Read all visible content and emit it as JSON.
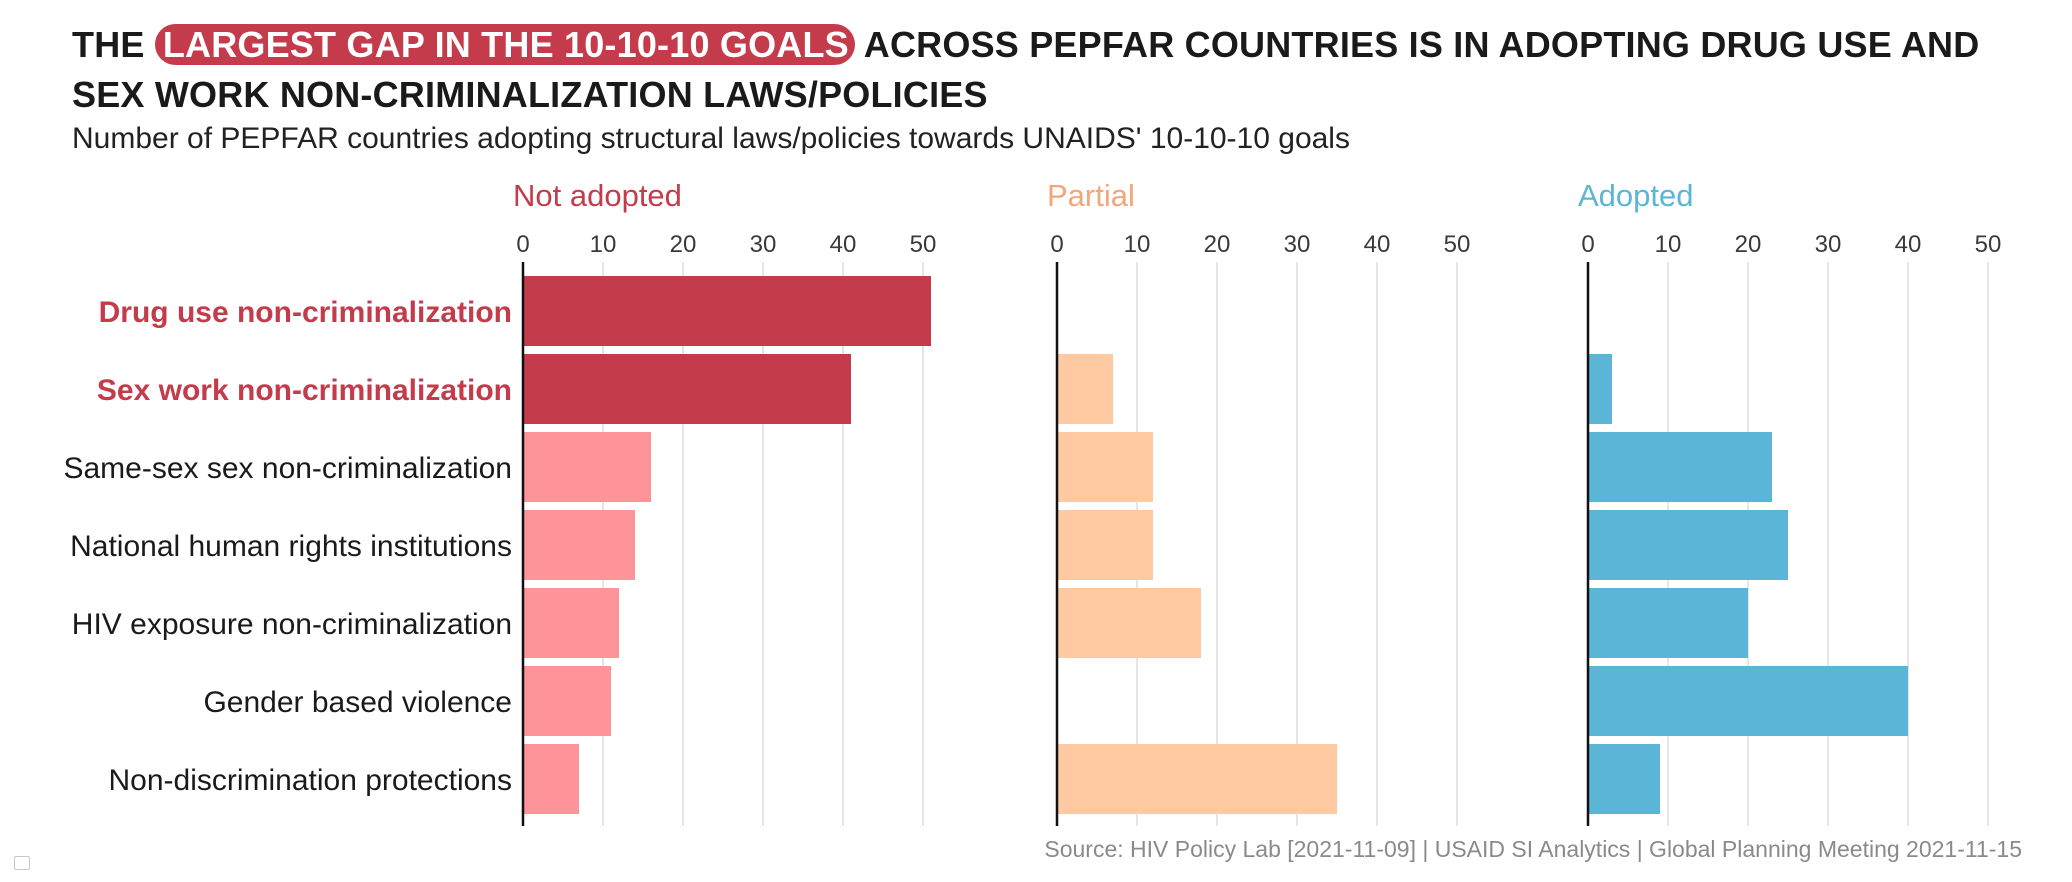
{
  "title": {
    "prefix": "THE ",
    "highlight": "LARGEST GAP IN THE 10-10-10 GOALS",
    "rest": " ACROSS PEPFAR COUNTRIES IS IN ADOPTING DRUG USE AND SEX WORK NON-CRIMINALIZATION LAWS/POLICIES"
  },
  "subtitle": "Number of PEPFAR countries adopting structural laws/policies towards UNAIDS' 10-10-10 goals",
  "source": "Source: HIV Policy Lab [2021-11-09] | USAID SI Analytics | Global Planning Meeting 2021-11-15",
  "chart_data": {
    "type": "bar",
    "orientation": "horizontal",
    "categories": [
      "Drug use non-criminalization",
      "Sex work non-criminalization",
      "Same-sex sex non-criminalization",
      "National human rights institutions",
      "HIV exposure non-criminalization",
      "Gender based violence",
      "Non-discrimination protections"
    ],
    "highlighted_categories": [
      "Drug use non-criminalization",
      "Sex work non-criminalization"
    ],
    "xlim": [
      0,
      50
    ],
    "ticks": [
      0,
      10,
      20,
      30,
      40,
      50
    ],
    "grid": true,
    "panels": [
      {
        "name": "Not adopted",
        "color": "#c43c4b",
        "bar_color": "#ff939a",
        "highlight_color": "#c43c4b",
        "values": [
          51,
          41,
          16,
          14,
          12,
          11,
          7
        ]
      },
      {
        "name": "Partial",
        "color": "#f2a67a",
        "bar_color": "#ffcaa2",
        "values": [
          0,
          7,
          12,
          12,
          18,
          0,
          35
        ]
      },
      {
        "name": "Adopted",
        "color": "#5bb5d6",
        "bar_color": "#5bb5d6",
        "values": [
          0,
          3,
          23,
          25,
          20,
          40,
          9
        ]
      }
    ]
  }
}
